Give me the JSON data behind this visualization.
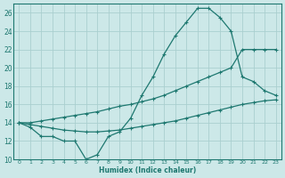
{
  "xlabel": "Humidex (Indice chaleur)",
  "bg_color": "#cce8e8",
  "grid_color": "#aacfcf",
  "line_color": "#1e7870",
  "xlim": [
    -0.5,
    23.5
  ],
  "ylim": [
    10,
    27
  ],
  "xticks": [
    0,
    1,
    2,
    3,
    4,
    5,
    6,
    7,
    8,
    9,
    10,
    11,
    12,
    13,
    14,
    15,
    16,
    17,
    18,
    19,
    20,
    21,
    22,
    23
  ],
  "yticks": [
    10,
    12,
    14,
    16,
    18,
    20,
    22,
    24,
    26
  ],
  "line1_x": [
    0,
    1,
    2,
    3,
    4,
    5,
    6,
    7,
    8,
    9,
    10,
    11,
    12,
    13,
    14,
    15,
    16,
    17,
    18,
    19,
    20,
    21,
    22,
    23
  ],
  "line1_y": [
    14,
    13.5,
    12.5,
    12.5,
    12,
    12,
    10,
    10.5,
    12.5,
    13,
    14.5,
    17,
    19,
    21.5,
    23.5,
    25,
    26.5,
    26.5,
    25.5,
    24,
    19,
    18.5,
    17.5,
    17
  ],
  "line2_x": [
    0,
    1,
    2,
    3,
    4,
    5,
    6,
    7,
    8,
    9,
    10,
    11,
    12,
    13,
    14,
    15,
    16,
    17,
    18,
    19,
    20,
    21,
    22,
    23
  ],
  "line2_y": [
    14,
    14,
    14.2,
    14.4,
    14.6,
    14.8,
    15,
    15.2,
    15.5,
    15.8,
    16,
    16.3,
    16.6,
    17,
    17.5,
    18,
    18.5,
    19,
    19.5,
    20,
    22,
    22,
    22,
    22
  ],
  "line3_x": [
    0,
    1,
    2,
    3,
    4,
    5,
    6,
    7,
    8,
    9,
    10,
    11,
    12,
    13,
    14,
    15,
    16,
    17,
    18,
    19,
    20,
    21,
    22,
    23
  ],
  "line3_y": [
    14,
    13.8,
    13.6,
    13.4,
    13.2,
    13.1,
    13.0,
    13.0,
    13.1,
    13.2,
    13.4,
    13.6,
    13.8,
    14.0,
    14.2,
    14.5,
    14.8,
    15.1,
    15.4,
    15.7,
    16.0,
    16.2,
    16.4,
    16.5
  ]
}
